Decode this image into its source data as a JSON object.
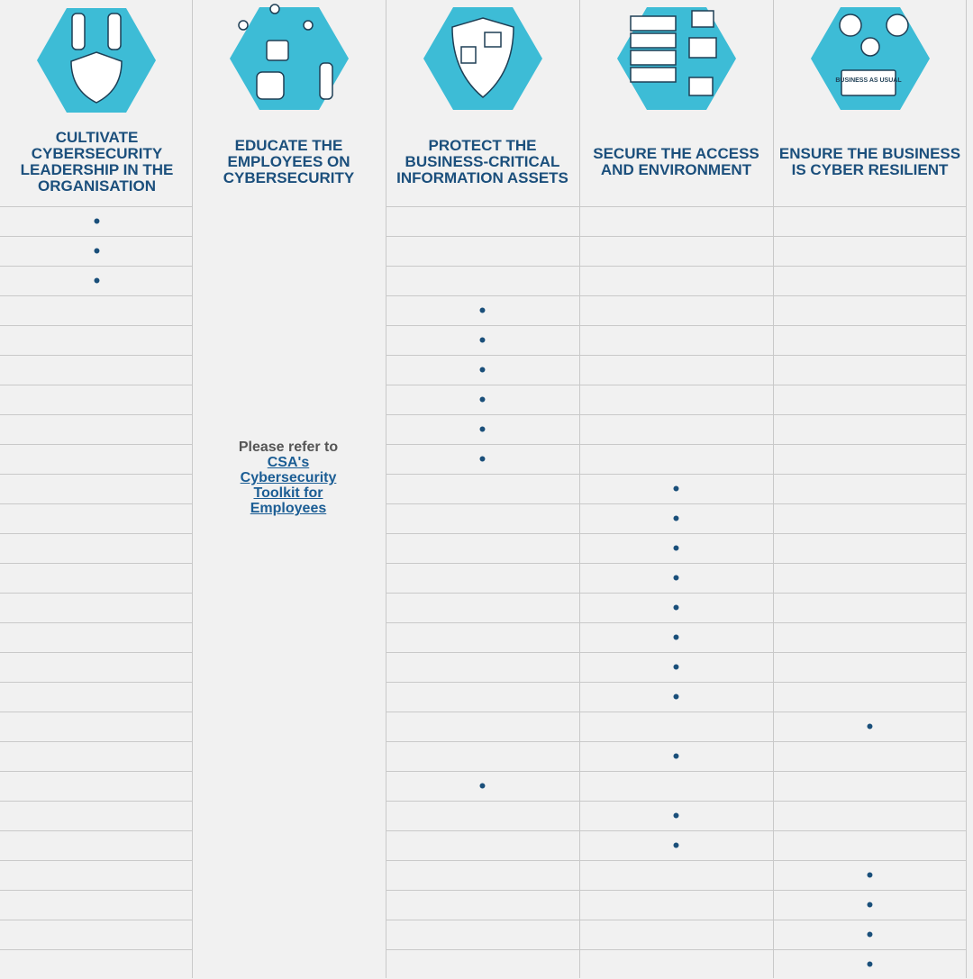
{
  "header": {
    "columns": [
      "CULTIVATE CYBERSECURITY LEADERSHIP IN THE ORGANISATION",
      "EDUCATE THE EMPLOYEES ON CYBERSECURITY",
      "PROTECT THE BUSINESS-CRITICAL INFORMATION ASSETS",
      "SECURE THE ACCESS AND ENVIRONMENT",
      "ENSURE THE BUSINESS IS CYBER RESILIENT"
    ]
  },
  "merged_cell": {
    "text": "Please refer to",
    "link": "CSA's Cybersecurity Toolkit for Employees"
  },
  "icon_text": "BUSINESS AS USUAL",
  "table": {
    "rows": [
      [
        "•",
        null,
        null,
        null
      ],
      [
        "•",
        null,
        null,
        null
      ],
      [
        "•",
        null,
        null,
        null
      ],
      [
        null,
        "•",
        null,
        null
      ],
      [
        null,
        "•",
        null,
        null
      ],
      [
        null,
        "•",
        null,
        null
      ],
      [
        null,
        "•",
        null,
        null
      ],
      [
        null,
        "•",
        null,
        null
      ],
      [
        null,
        "•",
        null,
        null
      ],
      [
        null,
        null,
        "•",
        null
      ],
      [
        null,
        null,
        "•",
        null
      ],
      [
        null,
        null,
        "•",
        null
      ],
      [
        null,
        null,
        "•",
        null
      ],
      [
        null,
        null,
        "•",
        null
      ],
      [
        null,
        null,
        "•",
        null
      ],
      [
        null,
        null,
        "•",
        null
      ],
      [
        null,
        null,
        "•",
        null
      ],
      [
        null,
        null,
        null,
        "•"
      ],
      [
        null,
        null,
        "•",
        null
      ],
      [
        null,
        "•",
        null,
        null
      ],
      [
        null,
        null,
        "•",
        null
      ],
      [
        null,
        null,
        "•",
        null
      ],
      [
        null,
        null,
        null,
        "•"
      ],
      [
        null,
        null,
        null,
        "•"
      ],
      [
        null,
        null,
        null,
        "•"
      ],
      [
        null,
        null,
        null,
        "•"
      ]
    ]
  }
}
